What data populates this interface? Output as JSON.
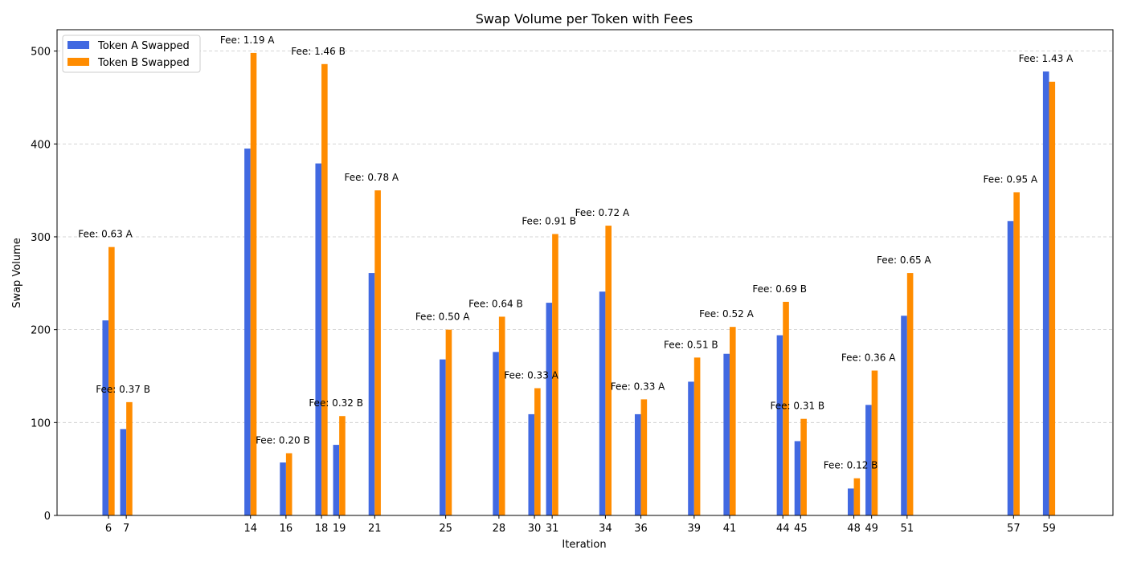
{
  "chart_data": {
    "type": "bar",
    "title": "Swap Volume per Token with Fees",
    "xlabel": "Iteration",
    "ylabel": "Swap Volume",
    "ylim": [
      0,
      523
    ],
    "yticks": [
      0,
      100,
      200,
      300,
      400,
      500
    ],
    "grid": true,
    "legend_position": "top-left",
    "series": [
      {
        "name": "Token A Swapped",
        "color": "#4169e1"
      },
      {
        "name": "Token B Swapped",
        "color": "#ff8c00"
      }
    ],
    "points": [
      {
        "x": 6,
        "a": 210,
        "b": 289,
        "fee": "Fee: 0.63 A"
      },
      {
        "x": 7,
        "a": 93,
        "b": 122,
        "fee": "Fee: 0.37 B"
      },
      {
        "x": 14,
        "a": 395,
        "b": 498,
        "fee": "Fee: 1.19 A"
      },
      {
        "x": 16,
        "a": 57,
        "b": 67,
        "fee": "Fee: 0.20 B"
      },
      {
        "x": 18,
        "a": 379,
        "b": 486,
        "fee": "Fee: 1.46 B"
      },
      {
        "x": 19,
        "a": 76,
        "b": 107,
        "fee": "Fee: 0.32 B"
      },
      {
        "x": 21,
        "a": 261,
        "b": 350,
        "fee": "Fee: 0.78 A"
      },
      {
        "x": 25,
        "a": 168,
        "b": 200,
        "fee": "Fee: 0.50 A"
      },
      {
        "x": 28,
        "a": 176,
        "b": 214,
        "fee": "Fee: 0.64 B"
      },
      {
        "x": 30,
        "a": 109,
        "b": 137,
        "fee": "Fee: 0.33 A"
      },
      {
        "x": 31,
        "a": 229,
        "b": 303,
        "fee": "Fee: 0.91 B"
      },
      {
        "x": 34,
        "a": 241,
        "b": 312,
        "fee": "Fee: 0.72 A"
      },
      {
        "x": 36,
        "a": 109,
        "b": 125,
        "fee": "Fee: 0.33 A"
      },
      {
        "x": 39,
        "a": 144,
        "b": 170,
        "fee": "Fee: 0.51 B"
      },
      {
        "x": 41,
        "a": 174,
        "b": 203,
        "fee": "Fee: 0.52 A"
      },
      {
        "x": 44,
        "a": 194,
        "b": 230,
        "fee": "Fee: 0.69 B"
      },
      {
        "x": 45,
        "a": 80,
        "b": 104,
        "fee": "Fee: 0.31 B"
      },
      {
        "x": 48,
        "a": 29,
        "b": 40,
        "fee": "Fee: 0.12 B"
      },
      {
        "x": 49,
        "a": 119,
        "b": 156,
        "fee": "Fee: 0.36 A"
      },
      {
        "x": 51,
        "a": 215,
        "b": 261,
        "fee": "Fee: 0.65 A"
      },
      {
        "x": 57,
        "a": 317,
        "b": 348,
        "fee": "Fee: 0.95 A"
      },
      {
        "x": 59,
        "a": 478,
        "b": 467,
        "fee": "Fee: 1.43 A"
      }
    ]
  }
}
